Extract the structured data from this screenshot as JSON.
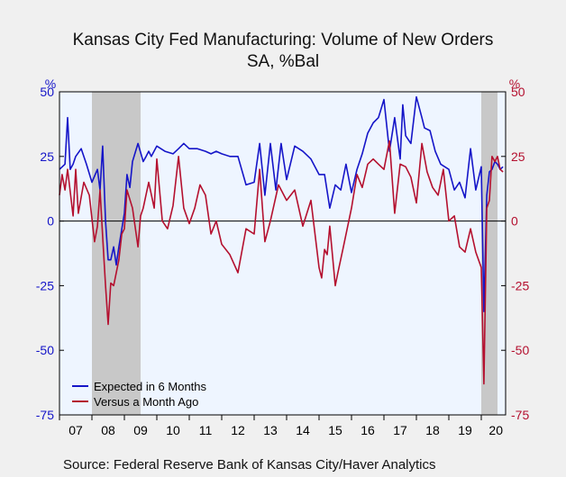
{
  "title": "Kansas City Fed Manufacturing: Volume of New Orders",
  "subtitle": "SA, %Bal",
  "source": "Source:  Federal Reserve Bank of Kansas City/Haver Analytics",
  "chart_data": {
    "type": "line",
    "title": "Kansas City Fed Manufacturing: Volume of New Orders",
    "subtitle": "SA, %Bal",
    "left_axis_label": "%",
    "right_axis_label": "%",
    "ylim": [
      -75,
      50
    ],
    "yticks": [
      50,
      25,
      0,
      -25,
      -50,
      -75
    ],
    "ytick_labels": [
      "50",
      "25",
      "0",
      "-25",
      "-50",
      "-75"
    ],
    "x_range": [
      2007.0,
      2020.75
    ],
    "xtick_labels": [
      {
        "year": 2007,
        "label": "07"
      },
      {
        "year": 2008,
        "label": "08"
      },
      {
        "year": 2009,
        "label": "09"
      },
      {
        "year": 2010,
        "label": "10"
      },
      {
        "year": 2011,
        "label": "11"
      },
      {
        "year": 2012,
        "label": "12"
      },
      {
        "year": 2013,
        "label": "13"
      },
      {
        "year": 2014,
        "label": "14"
      },
      {
        "year": 2015,
        "label": "15"
      },
      {
        "year": 2016,
        "label": "16"
      },
      {
        "year": 2017,
        "label": "17"
      },
      {
        "year": 2018,
        "label": "18"
      },
      {
        "year": 2019,
        "label": "19"
      },
      {
        "year": 2020,
        "label": "20"
      }
    ],
    "recessions": [
      {
        "start": 2008.0,
        "end": 2009.5
      },
      {
        "start": 2020.0,
        "end": 2020.5
      }
    ],
    "grid": false,
    "legend_position": "bottom-left",
    "series": [
      {
        "name": "Expected in 6 Months",
        "color": "#1515c8",
        "x": [
          2007.0,
          2007.17,
          2007.25,
          2007.33,
          2007.42,
          2007.5,
          2007.67,
          2007.83,
          2008.0,
          2008.17,
          2008.25,
          2008.33,
          2008.42,
          2008.5,
          2008.58,
          2008.67,
          2008.75,
          2008.83,
          2009.0,
          2009.08,
          2009.17,
          2009.25,
          2009.42,
          2009.58,
          2009.67,
          2009.75,
          2009.83,
          2010.0,
          2010.25,
          2010.5,
          2010.67,
          2010.83,
          2011.0,
          2011.25,
          2011.5,
          2011.67,
          2011.83,
          2012.0,
          2012.25,
          2012.5,
          2012.75,
          2013.0,
          2013.17,
          2013.33,
          2013.5,
          2013.67,
          2013.83,
          2014.0,
          2014.25,
          2014.5,
          2014.75,
          2015.0,
          2015.17,
          2015.33,
          2015.5,
          2015.67,
          2015.83,
          2016.0,
          2016.17,
          2016.33,
          2016.5,
          2016.67,
          2016.83,
          2017.0,
          2017.17,
          2017.33,
          2017.5,
          2017.58,
          2017.67,
          2017.83,
          2018.0,
          2018.17,
          2018.25,
          2018.42,
          2018.58,
          2018.75,
          2019.0,
          2019.17,
          2019.33,
          2019.5,
          2019.67,
          2019.83,
          2020.0,
          2020.08,
          2020.17,
          2020.25,
          2020.33,
          2020.42,
          2020.5,
          2020.58,
          2020.67
        ],
        "values": [
          20,
          22,
          40,
          20,
          22,
          25,
          28,
          22,
          15,
          20,
          12,
          29,
          0,
          -15,
          -15,
          -10,
          -17,
          -10,
          3,
          18,
          13,
          23,
          30,
          23,
          25,
          27,
          25,
          29,
          27,
          26,
          28,
          30,
          28,
          28,
          27,
          26,
          27,
          26,
          25,
          25,
          14,
          15,
          30,
          10,
          30,
          12,
          30,
          16,
          29,
          27,
          24,
          18,
          18,
          5,
          14,
          12,
          22,
          11,
          20,
          26,
          34,
          38,
          40,
          47,
          27,
          40,
          24,
          45,
          33,
          30,
          48,
          40,
          36,
          35,
          27,
          22,
          20,
          12,
          15,
          9,
          28,
          12,
          21,
          -35,
          10,
          19,
          20,
          23,
          22,
          20,
          21
        ]
      },
      {
        "name": "Versus a Month Ago",
        "color": "#b4102f",
        "x": [
          2007.0,
          2007.08,
          2007.17,
          2007.25,
          2007.42,
          2007.5,
          2007.58,
          2007.75,
          2007.92,
          2008.08,
          2008.17,
          2008.25,
          2008.33,
          2008.42,
          2008.5,
          2008.58,
          2008.67,
          2008.83,
          2008.92,
          2009.0,
          2009.08,
          2009.25,
          2009.42,
          2009.5,
          2009.58,
          2009.75,
          2009.92,
          2010.0,
          2010.17,
          2010.33,
          2010.5,
          2010.67,
          2010.83,
          2011.0,
          2011.17,
          2011.33,
          2011.5,
          2011.67,
          2011.83,
          2012.0,
          2012.25,
          2012.5,
          2012.75,
          2013.0,
          2013.17,
          2013.33,
          2013.5,
          2013.75,
          2014.0,
          2014.25,
          2014.5,
          2014.75,
          2015.0,
          2015.08,
          2015.17,
          2015.25,
          2015.33,
          2015.5,
          2015.58,
          2015.75,
          2016.0,
          2016.17,
          2016.33,
          2016.5,
          2016.67,
          2016.83,
          2017.0,
          2017.17,
          2017.33,
          2017.5,
          2017.67,
          2017.83,
          2018.0,
          2018.17,
          2018.33,
          2018.5,
          2018.67,
          2018.83,
          2019.0,
          2019.17,
          2019.33,
          2019.5,
          2019.67,
          2019.83,
          2020.0,
          2020.08,
          2020.17,
          2020.25,
          2020.33,
          2020.42,
          2020.5,
          2020.58,
          2020.67
        ],
        "values": [
          10,
          18,
          12,
          20,
          2,
          20,
          3,
          15,
          10,
          -8,
          -2,
          12,
          -6,
          -25,
          -40,
          -24,
          -25,
          -15,
          -5,
          -3,
          12,
          5,
          -10,
          2,
          5,
          15,
          5,
          24,
          0,
          -3,
          6,
          25,
          5,
          -1,
          5,
          14,
          10,
          -5,
          0,
          -9,
          -13,
          -20,
          -3,
          -5,
          20,
          -8,
          0,
          14,
          8,
          12,
          -2,
          8,
          -18,
          -22,
          -11,
          -13,
          -2,
          -25,
          -20,
          -10,
          5,
          18,
          13,
          22,
          24,
          22,
          20,
          31,
          3,
          22,
          21,
          17,
          7,
          30,
          19,
          13,
          10,
          20,
          0,
          2,
          -10,
          -12,
          -3,
          -12,
          -18,
          -63,
          5,
          8,
          25,
          23,
          25,
          20,
          19
        ]
      }
    ]
  }
}
